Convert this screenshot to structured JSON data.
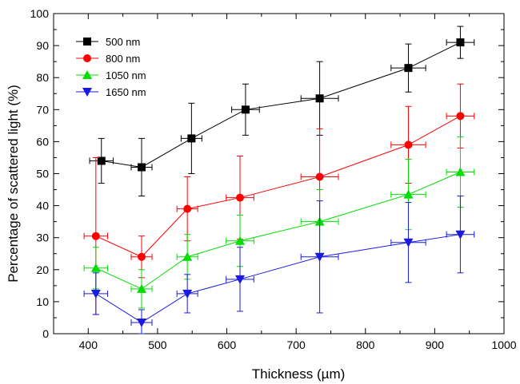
{
  "chart_data": {
    "type": "scatter",
    "xlabel": "Thickness (µm)",
    "ylabel": "Percentage of scattered light (%)",
    "xlim": [
      350,
      1000
    ],
    "ylim": [
      0,
      100
    ],
    "xticks": [
      400,
      500,
      600,
      700,
      800,
      900,
      1000
    ],
    "yticks": [
      0,
      10,
      20,
      30,
      40,
      50,
      60,
      70,
      80,
      90,
      100
    ],
    "legend_position": "top-left",
    "grid": false,
    "series": [
      {
        "name": "500 nm",
        "color": "#000000",
        "marker": "square",
        "x": [
          419,
          477,
          549,
          627,
          734,
          862,
          937
        ],
        "y": [
          54,
          52,
          61,
          70,
          73.5,
          83,
          91
        ],
        "xerr": [
          17,
          15,
          15,
          20,
          27,
          25,
          20
        ],
        "yerr": [
          7,
          9,
          11,
          8,
          11.5,
          7.5,
          5
        ]
      },
      {
        "name": "800 nm",
        "color": "#ff0000",
        "marker": "circle",
        "x": [
          411,
          477,
          543,
          619,
          734,
          862,
          937
        ],
        "y": [
          30.5,
          24,
          39,
          42.5,
          49,
          59,
          68
        ],
        "xerr": [
          17,
          15,
          15,
          20,
          27,
          25,
          20
        ],
        "yerr": [
          24.5,
          6.5,
          10,
          13,
          15,
          12,
          10
        ]
      },
      {
        "name": "1050 nm",
        "color": "#00dd00",
        "marker": "triangle-up",
        "x": [
          411,
          477,
          543,
          619,
          734,
          862,
          937
        ],
        "y": [
          20.5,
          14,
          24,
          29,
          35,
          43.5,
          50.5
        ],
        "xerr": [
          17,
          15,
          15,
          20,
          27,
          25,
          20
        ],
        "yerr": [
          6.5,
          6,
          7,
          8,
          10,
          11,
          11
        ]
      },
      {
        "name": "1650 nm",
        "color": "#1a1ae0",
        "marker": "triangle-down",
        "x": [
          411,
          477,
          543,
          619,
          734,
          862,
          937
        ],
        "y": [
          12.5,
          3.5,
          12.5,
          17,
          24,
          28.5,
          31
        ],
        "xerr": [
          17,
          15,
          15,
          20,
          27,
          25,
          20
        ],
        "yerr": [
          6.5,
          4,
          6,
          10,
          17.5,
          12.5,
          12
        ]
      }
    ]
  }
}
